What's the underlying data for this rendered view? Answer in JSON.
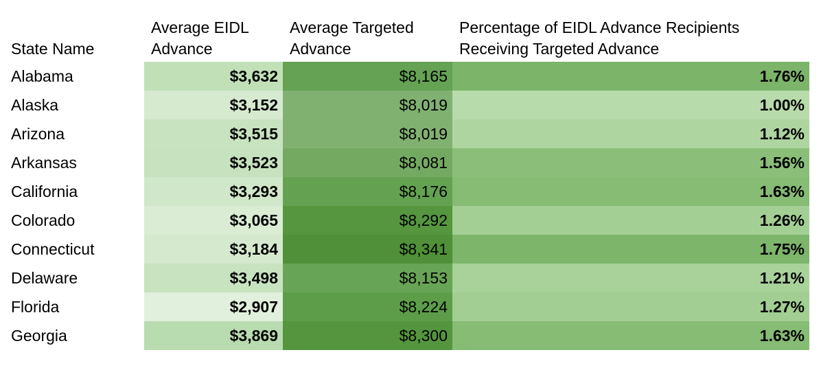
{
  "headers": {
    "state": "State Name",
    "eidl_line1": "Average EIDL",
    "eidl_line2": "Advance",
    "targeted_line1": "Average Targeted",
    "targeted_line2": "Advance",
    "pct_line1": "Percentage of EIDL Advance Recipients",
    "pct_line2": "Receiving Targeted Advance"
  },
  "rows": [
    {
      "state": "Alabama",
      "eidl": "$3,632",
      "targeted": "$8,165",
      "pct": "1.76%",
      "eidl_color": "#c1e0b8",
      "targeted_color": "#65a253",
      "pct_color": "#7cb46a"
    },
    {
      "state": "Alaska",
      "eidl": "$3,152",
      "targeted": "$8,019",
      "pct": "1.00%",
      "eidl_color": "#d6ead0",
      "targeted_color": "#81b171",
      "pct_color": "#b7dbaa"
    },
    {
      "state": "Arizona",
      "eidl": "$3,515",
      "targeted": "$8,019",
      "pct": "1.12%",
      "eidl_color": "#c7e3bf",
      "targeted_color": "#81b171",
      "pct_color": "#aed5a0"
    },
    {
      "state": "Arkansas",
      "eidl": "$3,523",
      "targeted": "$8,081",
      "pct": "1.56%",
      "eidl_color": "#c6e2be",
      "targeted_color": "#74a962",
      "pct_color": "#8bbf79"
    },
    {
      "state": "California",
      "eidl": "$3,293",
      "targeted": "$8,176",
      "pct": "1.63%",
      "eidl_color": "#d0e7c9",
      "targeted_color": "#64a251",
      "pct_color": "#86bc74"
    },
    {
      "state": "Colorado",
      "eidl": "$3,065",
      "targeted": "$8,292",
      "pct": "1.26%",
      "eidl_color": "#daecd4",
      "targeted_color": "#55963f",
      "pct_color": "#a3cf94"
    },
    {
      "state": "Connecticut",
      "eidl": "$3,184",
      "targeted": "$8,341",
      "pct": "1.75%",
      "eidl_color": "#d5e9cf",
      "targeted_color": "#4f9039",
      "pct_color": "#7db56b"
    },
    {
      "state": "Delaware",
      "eidl": "$3,498",
      "targeted": "$8,153",
      "pct": "1.21%",
      "eidl_color": "#c8e3c0",
      "targeted_color": "#68a455",
      "pct_color": "#a8d29a"
    },
    {
      "state": "Florida",
      "eidl": "$2,907",
      "targeted": "$8,224",
      "pct": "1.27%",
      "eidl_color": "#e1f0dc",
      "targeted_color": "#5d9d49",
      "pct_color": "#a2ce93"
    },
    {
      "state": "Georgia",
      "eidl": "$3,869",
      "targeted": "$8,300",
      "pct": "1.63%",
      "eidl_color": "#b8dbaf",
      "targeted_color": "#54953e",
      "pct_color": "#86bc74"
    }
  ]
}
